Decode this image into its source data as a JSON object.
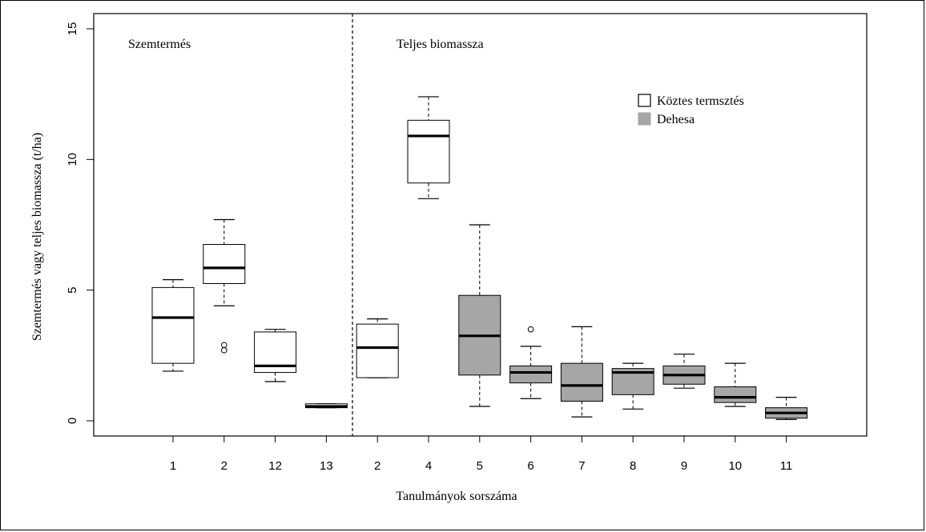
{
  "chart_data": {
    "type": "boxplot",
    "ylabel": "Szemtermés vagy teljes biomassza (t/ha)",
    "xlabel": "Tanulmányok sorszáma",
    "ylim": [
      0,
      15
    ],
    "yticks": [
      0,
      5,
      10,
      15
    ],
    "panels": [
      {
        "label": "Szemtermés"
      },
      {
        "label": "Teljes biomassza"
      }
    ],
    "legend": {
      "placement": "top-right",
      "entries": [
        {
          "label": "Köztes termsztés",
          "fill": "#ffffff"
        },
        {
          "label": "Dehesa",
          "fill": "#a6a6a6"
        }
      ]
    },
    "groups": [
      {
        "label": "1",
        "panel": 0,
        "series": "Köztes termsztés",
        "min": 1.9,
        "q1": 2.2,
        "median": 3.95,
        "q3": 5.1,
        "max": 5.4,
        "outliers": []
      },
      {
        "label": "2",
        "panel": 0,
        "series": "Köztes termsztés",
        "min": 4.4,
        "q1": 5.25,
        "median": 5.85,
        "q3": 6.75,
        "max": 7.7,
        "outliers": [
          2.7,
          2.9
        ]
      },
      {
        "label": "12",
        "panel": 0,
        "series": "Köztes termsztés",
        "min": 1.5,
        "q1": 1.85,
        "median": 2.1,
        "q3": 3.4,
        "max": 3.5,
        "outliers": []
      },
      {
        "label": "13",
        "panel": 0,
        "series": "Köztes termsztés",
        "min": 0.5,
        "q1": 0.5,
        "median": 0.55,
        "q3": 0.65,
        "max": 0.65,
        "outliers": []
      },
      {
        "label": "2",
        "panel": 1,
        "series": "Köztes termsztés",
        "min": 1.65,
        "q1": 1.65,
        "median": 2.8,
        "q3": 3.7,
        "max": 3.9,
        "outliers": []
      },
      {
        "label": "4",
        "panel": 1,
        "series": "Köztes termsztés",
        "min": 8.5,
        "q1": 9.1,
        "median": 10.9,
        "q3": 11.5,
        "max": 12.4,
        "outliers": []
      },
      {
        "label": "5",
        "panel": 1,
        "series": "Dehesa",
        "min": 0.55,
        "q1": 1.75,
        "median": 3.25,
        "q3": 4.8,
        "max": 7.5,
        "outliers": []
      },
      {
        "label": "6",
        "panel": 1,
        "series": "Dehesa",
        "min": 0.85,
        "q1": 1.45,
        "median": 1.85,
        "q3": 2.1,
        "max": 2.85,
        "outliers": [
          3.5
        ]
      },
      {
        "label": "7",
        "panel": 1,
        "series": "Dehesa",
        "min": 0.15,
        "q1": 0.75,
        "median": 1.35,
        "q3": 2.2,
        "max": 3.6,
        "outliers": []
      },
      {
        "label": "8",
        "panel": 1,
        "series": "Dehesa",
        "min": 0.45,
        "q1": 1.0,
        "median": 1.85,
        "q3": 2.0,
        "max": 2.2,
        "outliers": []
      },
      {
        "label": "9",
        "panel": 1,
        "series": "Dehesa",
        "min": 1.25,
        "q1": 1.4,
        "median": 1.75,
        "q3": 2.1,
        "max": 2.55,
        "outliers": []
      },
      {
        "label": "10",
        "panel": 1,
        "series": "Dehesa",
        "min": 0.55,
        "q1": 0.7,
        "median": 0.9,
        "q3": 1.3,
        "max": 2.2,
        "outliers": []
      },
      {
        "label": "11",
        "panel": 1,
        "series": "Dehesa",
        "min": 0.05,
        "q1": 0.1,
        "median": 0.3,
        "q3": 0.5,
        "max": 0.9,
        "outliers": []
      }
    ]
  }
}
